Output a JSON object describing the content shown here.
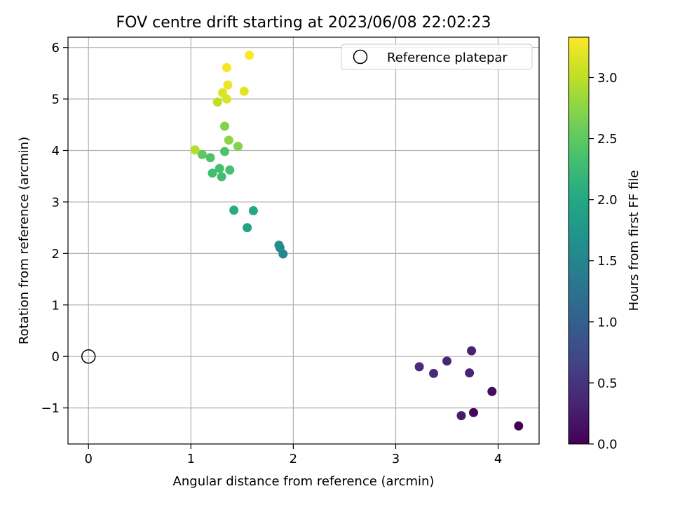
{
  "chart_data": {
    "type": "scatter",
    "title": "FOV centre drift starting at 2023/06/08 22:02:23",
    "xlabel": "Angular distance from reference (arcmin)",
    "ylabel": "Rotation from reference (arcmin)",
    "xlim": [
      -0.2,
      4.4
    ],
    "ylim": [
      -1.7,
      6.2
    ],
    "xticks": [
      0,
      1,
      2,
      3,
      4
    ],
    "yticks": [
      -1,
      0,
      1,
      2,
      3,
      4,
      5,
      6
    ],
    "xtick_labels": [
      "0",
      "1",
      "2",
      "3",
      "4"
    ],
    "ytick_labels": [
      "−1",
      "0",
      "1",
      "2",
      "3",
      "4",
      "5",
      "6"
    ],
    "grid": true,
    "legend": {
      "placement": "top-right",
      "entries": [
        "Reference platepar"
      ]
    },
    "reference_point": {
      "x": 0,
      "y": 0
    },
    "colorbar": {
      "label": "Hours from first FF file",
      "colormap": "viridis",
      "range": [
        0,
        3.33
      ],
      "ticks": [
        0,
        0.5,
        1,
        1.5,
        2,
        2.5,
        3
      ],
      "tick_labels": [
        "0.0",
        "0.5",
        "1.0",
        "1.5",
        "2.0",
        "2.5",
        "3.0"
      ]
    },
    "points": [
      {
        "x": 4.2,
        "y": -1.35,
        "c": 0.0
      },
      {
        "x": 3.76,
        "y": -1.09,
        "c": 0.05
      },
      {
        "x": 3.94,
        "y": -0.68,
        "c": 0.1
      },
      {
        "x": 3.64,
        "y": -1.15,
        "c": 0.25
      },
      {
        "x": 3.74,
        "y": 0.11,
        "c": 0.3
      },
      {
        "x": 3.72,
        "y": -0.32,
        "c": 0.35
      },
      {
        "x": 3.5,
        "y": -0.09,
        "c": 0.38
      },
      {
        "x": 3.37,
        "y": -0.33,
        "c": 0.4
      },
      {
        "x": 3.23,
        "y": -0.2,
        "c": 0.42
      },
      {
        "x": 1.9,
        "y": 1.99,
        "c": 1.55
      },
      {
        "x": 1.87,
        "y": 2.11,
        "c": 1.58
      },
      {
        "x": 1.86,
        "y": 2.16,
        "c": 1.6
      },
      {
        "x": 1.55,
        "y": 2.5,
        "c": 1.95
      },
      {
        "x": 1.61,
        "y": 2.83,
        "c": 2.0
      },
      {
        "x": 1.42,
        "y": 2.84,
        "c": 2.05
      },
      {
        "x": 1.3,
        "y": 3.49,
        "c": 2.3
      },
      {
        "x": 1.21,
        "y": 3.56,
        "c": 2.3
      },
      {
        "x": 1.38,
        "y": 3.62,
        "c": 2.35
      },
      {
        "x": 1.28,
        "y": 3.65,
        "c": 2.35
      },
      {
        "x": 1.19,
        "y": 3.86,
        "c": 2.4
      },
      {
        "x": 1.33,
        "y": 3.98,
        "c": 2.4
      },
      {
        "x": 1.11,
        "y": 3.92,
        "c": 2.5
      },
      {
        "x": 1.46,
        "y": 4.08,
        "c": 2.7
      },
      {
        "x": 1.37,
        "y": 4.2,
        "c": 2.75
      },
      {
        "x": 1.33,
        "y": 4.47,
        "c": 2.7
      },
      {
        "x": 1.04,
        "y": 4.01,
        "c": 2.95
      },
      {
        "x": 1.26,
        "y": 4.94,
        "c": 3.0
      },
      {
        "x": 1.35,
        "y": 5.0,
        "c": 3.15
      },
      {
        "x": 1.31,
        "y": 5.12,
        "c": 3.15
      },
      {
        "x": 1.52,
        "y": 5.15,
        "c": 3.2
      },
      {
        "x": 1.36,
        "y": 5.27,
        "c": 3.25
      },
      {
        "x": 1.35,
        "y": 5.61,
        "c": 3.3
      },
      {
        "x": 1.57,
        "y": 5.85,
        "c": 3.33
      }
    ]
  }
}
